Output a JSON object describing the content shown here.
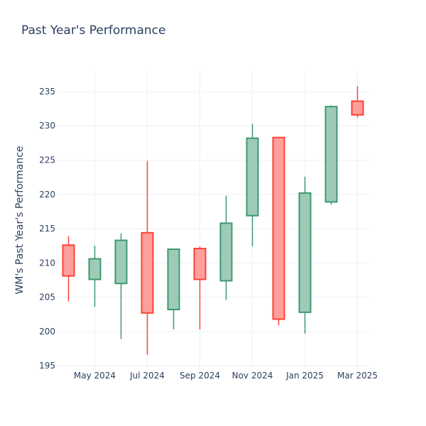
{
  "chart_data": {
    "type": "candlestick",
    "title": "Past Year's Performance",
    "xlabel": "",
    "ylabel": "WM's Past Year's Performance",
    "ylim": [
      194.5,
      238
    ],
    "y_ticks": [
      195,
      200,
      205,
      210,
      215,
      220,
      225,
      230,
      235
    ],
    "x_ticks": [
      "May 2024",
      "Jul 2024",
      "Sep 2024",
      "Nov 2024",
      "Jan 2025",
      "Mar 2025"
    ],
    "grid": true,
    "colors": {
      "increasing": "#3D9970",
      "decreasing": "#FF4136",
      "increasing_fill": "#9ECBB7",
      "decreasing_fill": "#FF9F9A"
    },
    "candles": [
      {
        "date": "2024-04",
        "open": 212.6,
        "high": 213.9,
        "low": 204.4,
        "close": 208.1
      },
      {
        "date": "2024-05",
        "open": 207.6,
        "high": 212.5,
        "low": 203.6,
        "close": 210.6
      },
      {
        "date": "2024-06",
        "open": 207.0,
        "high": 214.3,
        "low": 198.9,
        "close": 213.3
      },
      {
        "date": "2024-07",
        "open": 214.4,
        "high": 224.9,
        "low": 196.6,
        "close": 202.7
      },
      {
        "date": "2024-08",
        "open": 203.2,
        "high": 212.0,
        "low": 200.3,
        "close": 212.0
      },
      {
        "date": "2024-09",
        "open": 212.1,
        "high": 212.4,
        "low": 200.3,
        "close": 207.6
      },
      {
        "date": "2024-10",
        "open": 207.4,
        "high": 219.8,
        "low": 204.6,
        "close": 215.8
      },
      {
        "date": "2024-11",
        "open": 216.9,
        "high": 230.3,
        "low": 212.4,
        "close": 228.2
      },
      {
        "date": "2024-12",
        "open": 228.3,
        "high": 228.3,
        "low": 200.9,
        "close": 201.8
      },
      {
        "date": "2025-01",
        "open": 202.8,
        "high": 222.6,
        "low": 199.7,
        "close": 220.2
      },
      {
        "date": "2025-02",
        "open": 218.9,
        "high": 233.0,
        "low": 218.5,
        "close": 232.8
      },
      {
        "date": "2025-03",
        "open": 233.6,
        "high": 235.8,
        "low": 231.2,
        "close": 231.6
      }
    ]
  }
}
